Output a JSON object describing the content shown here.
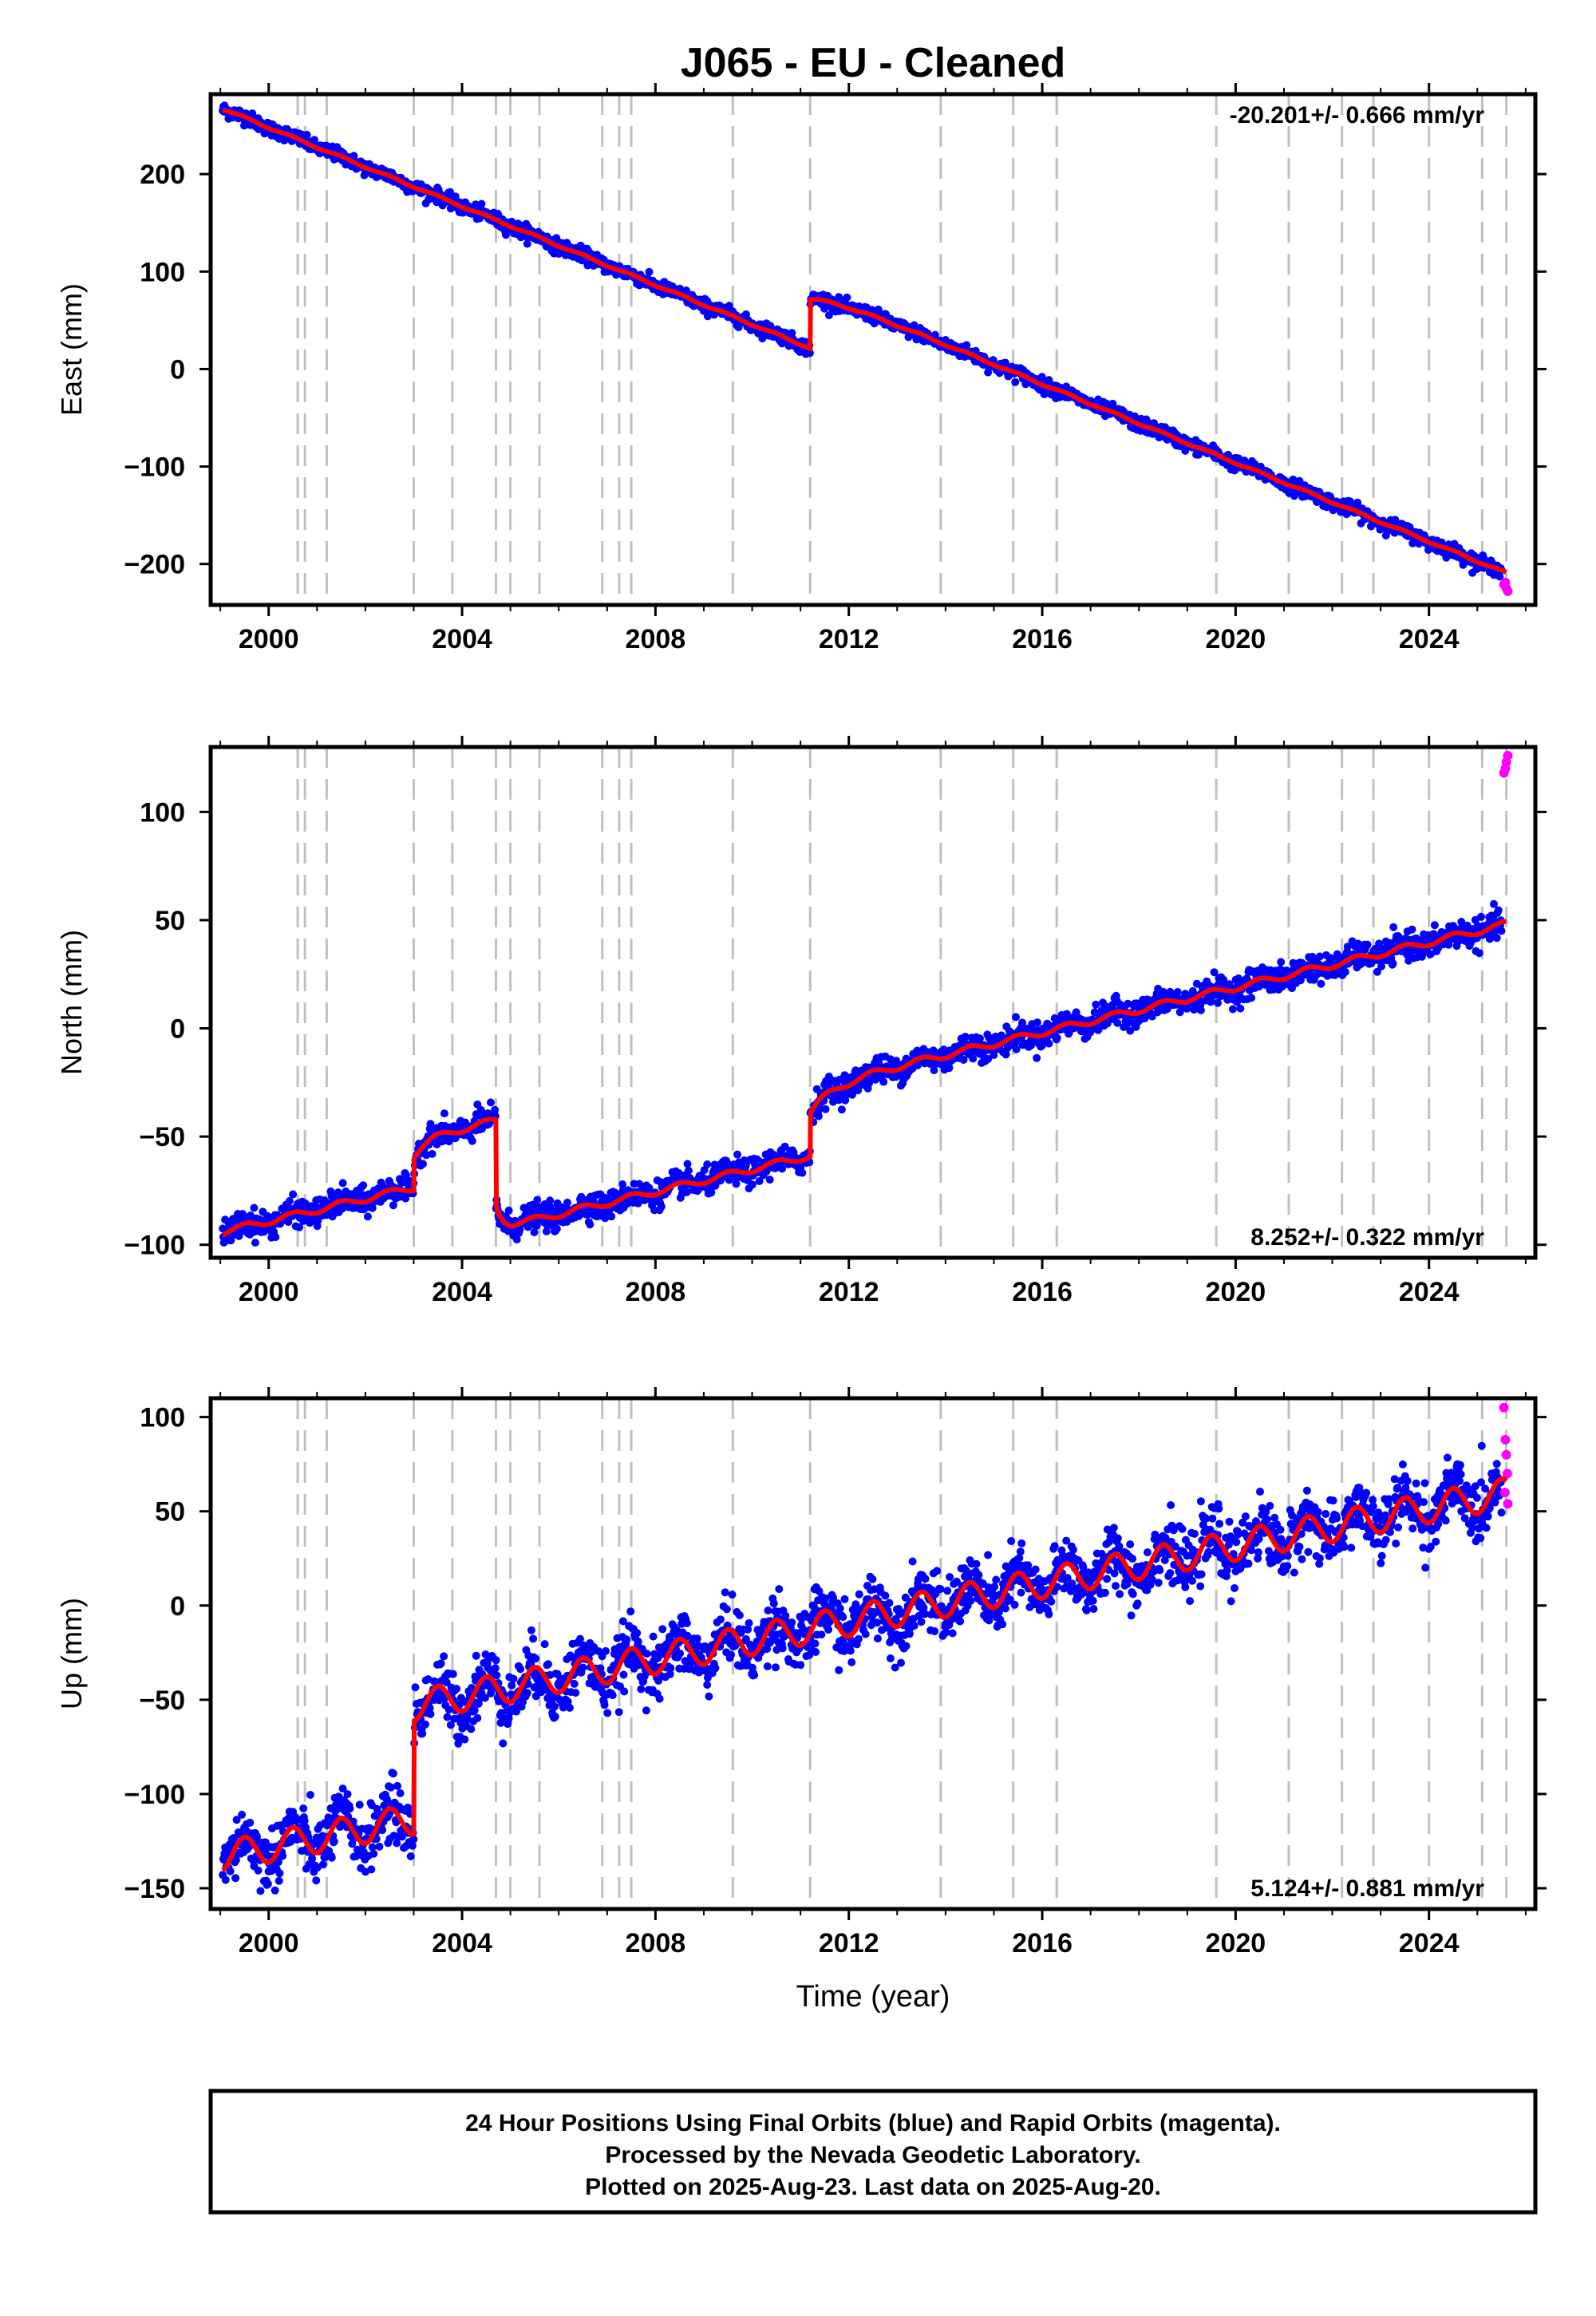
{
  "title": "J065  - EU - Cleaned",
  "footer": {
    "line1": "24 Hour Positions Using Final Orbits (blue) and Rapid Orbits (magenta).",
    "line2": "Processed by the Nevada Geodetic Laboratory.",
    "line3": "Plotted on 2025-Aug-23. Last data on 2025-Aug-20."
  },
  "colors": {
    "final": "#0000ff",
    "rapid": "#ff00ff",
    "model": "#ff0000",
    "event": "#c0c0c0"
  },
  "chart_data": [
    {
      "type": "scatter",
      "panel": "east",
      "ylabel": "East (mm)",
      "rate_text": "-20.201+/- 0.666 mm/yr",
      "xlim": [
        1998.8,
        2026.2
      ],
      "ylim": [
        -242,
        282
      ],
      "yticks": [
        -200,
        -100,
        0,
        100,
        200
      ],
      "xticks": [
        2000,
        2004,
        2008,
        2012,
        2016,
        2020,
        2024
      ],
      "events": [
        2000.6,
        2000.75,
        2001.2,
        2003.0,
        2003.8,
        2004.7,
        2005.0,
        2005.6,
        2006.9,
        2007.25,
        2007.5,
        2009.6,
        2011.2,
        2013.9,
        2015.4,
        2016.3,
        2019.6,
        2021.1,
        2022.2,
        2022.85,
        2024.0,
        2025.1,
        2025.6
      ],
      "model": {
        "start_value": 267,
        "trend": -20.2,
        "annual_amp": 1.0,
        "offsets": [
          {
            "x": 2011.2,
            "dy": 50
          }
        ],
        "post_seismic": [
          {
            "x": 2011.2,
            "amp": 10,
            "tau": 0.6
          }
        ]
      },
      "noise": 3.5,
      "rapid_points": [
        {
          "x": 2025.55,
          "y": -221
        },
        {
          "x": 2025.6,
          "y": -225
        },
        {
          "x": 2025.63,
          "y": -228
        },
        {
          "x": 2025.58,
          "y": -219
        }
      ]
    },
    {
      "type": "scatter",
      "panel": "north",
      "ylabel": "North (mm)",
      "rate_text": "8.252+/- 0.322 mm/yr",
      "xlim": [
        1998.8,
        2026.2
      ],
      "ylim": [
        -106,
        130
      ],
      "yticks": [
        -100,
        -50,
        0,
        50,
        100
      ],
      "xticks": [
        2000,
        2004,
        2008,
        2012,
        2016,
        2020,
        2024
      ],
      "events": [
        2000.6,
        2000.75,
        2001.2,
        2003.0,
        2003.8,
        2004.7,
        2005.0,
        2005.6,
        2006.9,
        2007.25,
        2007.5,
        2009.6,
        2011.2,
        2013.9,
        2015.4,
        2016.3,
        2019.6,
        2021.1,
        2022.2,
        2022.85,
        2024.0,
        2025.1,
        2025.6
      ],
      "model": {
        "start_value": -94,
        "trend": 5.2,
        "annual_amp": 1.5,
        "offsets": [
          {
            "x": 2003.0,
            "dy": 15
          },
          {
            "x": 2004.7,
            "dy": -40
          },
          {
            "x": 2011.2,
            "dy": 20
          }
        ],
        "post_seismic": [
          {
            "x": 2003.0,
            "amp": 7,
            "tau": 0.3
          },
          {
            "x": 2004.7,
            "amp": -10,
            "tau": 0.15
          },
          {
            "x": 2011.2,
            "amp": 12,
            "tau": 0.5
          }
        ]
      },
      "noise": 3.0,
      "rapid_points": [
        {
          "x": 2025.55,
          "y": 118
        },
        {
          "x": 2025.6,
          "y": 123
        },
        {
          "x": 2025.63,
          "y": 126
        },
        {
          "x": 2025.58,
          "y": 120
        }
      ]
    },
    {
      "type": "scatter",
      "panel": "up",
      "ylabel": "Up (mm)",
      "rate_text": "5.124+/- 0.881 mm/yr",
      "xlim": [
        1998.8,
        2026.2
      ],
      "ylim": [
        -161,
        110
      ],
      "yticks": [
        -150,
        -100,
        -50,
        0,
        50,
        100
      ],
      "xticks": [
        2000,
        2004,
        2008,
        2012,
        2016,
        2020,
        2024
      ],
      "events": [
        2000.6,
        2000.75,
        2001.2,
        2003.0,
        2003.8,
        2004.7,
        2005.0,
        2005.6,
        2006.9,
        2007.25,
        2007.5,
        2009.6,
        2011.2,
        2013.9,
        2015.4,
        2016.3,
        2019.6,
        2021.1,
        2022.2,
        2022.85,
        2024.0,
        2025.1,
        2025.6
      ],
      "model": {
        "start_value": -133,
        "trend": 5.0,
        "annual_amp": 8,
        "offsets": [
          {
            "x": 2003.0,
            "dy": 60
          }
        ],
        "post_seismic": []
      },
      "noise": 8,
      "rapid_points": [
        {
          "x": 2025.55,
          "y": 105
        },
        {
          "x": 2025.58,
          "y": 88
        },
        {
          "x": 2025.6,
          "y": 80
        },
        {
          "x": 2025.62,
          "y": 70
        },
        {
          "x": 2025.63,
          "y": 54
        },
        {
          "x": 2025.57,
          "y": 60
        }
      ]
    }
  ],
  "xlabel": "Time (year)"
}
